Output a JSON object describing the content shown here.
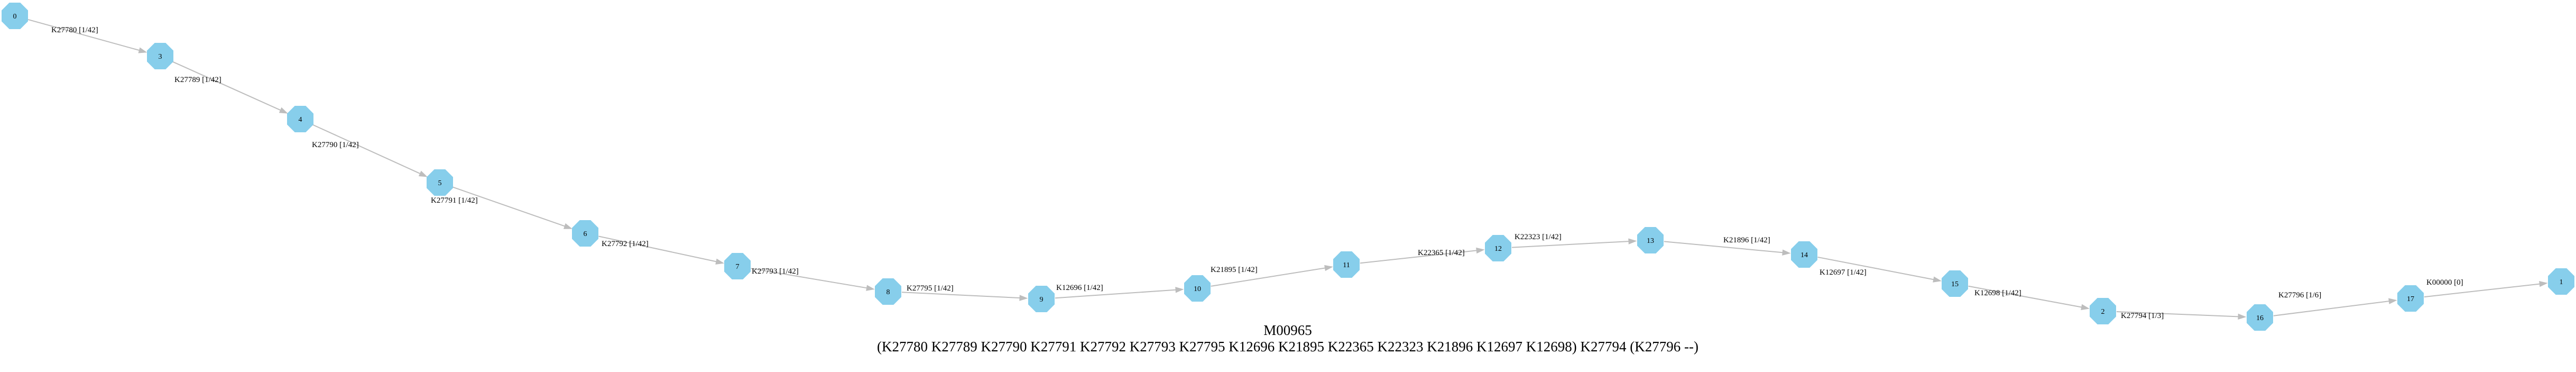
{
  "diagram": {
    "title": "M00965",
    "subtitle": "(K27780 K27789 K27790 K27791 K27792 K27793 K27795 K12696 K21895 K22365 K22323 K21896 K12697 K12698) K27794 (K27796 --)",
    "colors": {
      "node": "#87ceeb",
      "edge": "#bdbdbd",
      "text": "#000000"
    },
    "nodes": [
      {
        "id": "n0",
        "label": "0"
      },
      {
        "id": "n3",
        "label": "3"
      },
      {
        "id": "n4",
        "label": "4"
      },
      {
        "id": "n5",
        "label": "5"
      },
      {
        "id": "n6",
        "label": "6"
      },
      {
        "id": "n7",
        "label": "7"
      },
      {
        "id": "n8",
        "label": "8"
      },
      {
        "id": "n9",
        "label": "9"
      },
      {
        "id": "n10",
        "label": "10"
      },
      {
        "id": "n11",
        "label": "11"
      },
      {
        "id": "n12",
        "label": "12"
      },
      {
        "id": "n13",
        "label": "13"
      },
      {
        "id": "n14",
        "label": "14"
      },
      {
        "id": "n15",
        "label": "15"
      },
      {
        "id": "n2",
        "label": "2"
      },
      {
        "id": "n16",
        "label": "16"
      },
      {
        "id": "n17",
        "label": "17"
      },
      {
        "id": "n1",
        "label": "1"
      }
    ],
    "edges": [
      {
        "from": "n0",
        "to": "n3",
        "label": "K27780 [1/42]"
      },
      {
        "from": "n3",
        "to": "n4",
        "label": "K27789 [1/42]"
      },
      {
        "from": "n4",
        "to": "n5",
        "label": "K27790 [1/42]"
      },
      {
        "from": "n5",
        "to": "n6",
        "label": "K27791 [1/42]"
      },
      {
        "from": "n6",
        "to": "n7",
        "label": "K27792 [1/42]"
      },
      {
        "from": "n7",
        "to": "n8",
        "label": "K27793 [1/42]"
      },
      {
        "from": "n8",
        "to": "n9",
        "label": "K27795 [1/42]"
      },
      {
        "from": "n9",
        "to": "n10",
        "label": "K12696 [1/42]"
      },
      {
        "from": "n10",
        "to": "n11",
        "label": "K21895 [1/42]"
      },
      {
        "from": "n11",
        "to": "n12",
        "label": "K22365 [1/42]"
      },
      {
        "from": "n12",
        "to": "n13",
        "label": "K22323 [1/42]"
      },
      {
        "from": "n13",
        "to": "n14",
        "label": "K21896 [1/42]"
      },
      {
        "from": "n14",
        "to": "n15",
        "label": "K12697 [1/42]"
      },
      {
        "from": "n15",
        "to": "n2",
        "label": "K12698 [1/42]"
      },
      {
        "from": "n2",
        "to": "n16",
        "label": "K27794 [1/3]"
      },
      {
        "from": "n16",
        "to": "n17",
        "label": "K27796 [1/6]"
      },
      {
        "from": "n17",
        "to": "n1",
        "label": "K00000 [0]"
      }
    ]
  }
}
